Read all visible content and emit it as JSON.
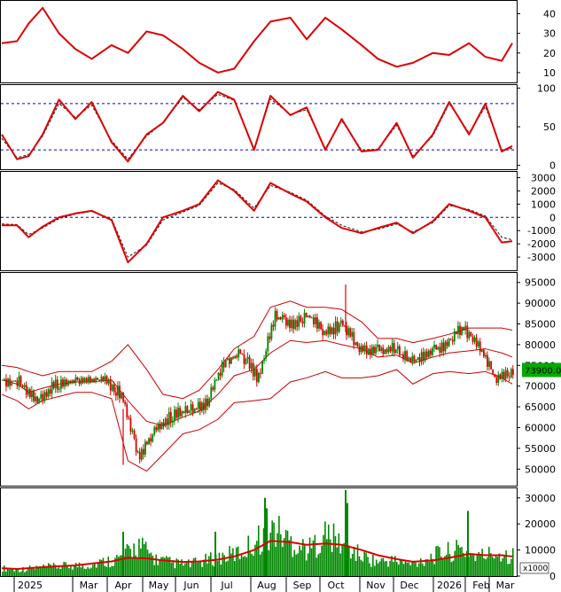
{
  "chart_data": [
    {
      "type": "line",
      "panel": "adx",
      "yticks": [
        "40",
        "30",
        "20",
        "10"
      ],
      "ylim": [
        5,
        47
      ],
      "x": [
        "2024-12-28",
        "2025-01-10",
        "2025-01-20",
        "2025-02-01",
        "2025-02-15",
        "2025-03-01",
        "2025-03-15",
        "2025-04-01",
        "2025-04-15",
        "2025-05-01",
        "2025-05-15",
        "2025-06-01",
        "2025-06-15",
        "2025-07-01",
        "2025-07-15",
        "2025-08-01",
        "2025-08-15",
        "2025-09-01",
        "2025-09-15",
        "2025-10-01",
        "2025-10-15",
        "2025-11-01",
        "2025-11-15",
        "2025-12-01",
        "2025-12-15",
        "2026-01-01",
        "2026-01-15",
        "2026-02-01",
        "2026-02-15",
        "2026-03-01",
        "2026-03-10"
      ],
      "series": [
        {
          "color": "#dd0000",
          "values": [
            25,
            26,
            35,
            43,
            30,
            22,
            17,
            24,
            20,
            31,
            29,
            22,
            15,
            10,
            12,
            26,
            36,
            38,
            27,
            38,
            32,
            24,
            17,
            13,
            15,
            20,
            19,
            25,
            18,
            16,
            25
          ]
        }
      ]
    },
    {
      "type": "line",
      "panel": "stochastic",
      "yticks": [
        "100",
        "50",
        "0"
      ],
      "ylim": [
        -5,
        105
      ],
      "reference_lines": [
        80,
        20
      ],
      "x": [
        "2024-12-28",
        "2025-01-10",
        "2025-01-20",
        "2025-02-01",
        "2025-02-15",
        "2025-03-01",
        "2025-03-15",
        "2025-04-01",
        "2025-04-15",
        "2025-05-01",
        "2025-05-15",
        "2025-06-01",
        "2025-06-15",
        "2025-07-01",
        "2025-07-15",
        "2025-08-01",
        "2025-08-15",
        "2025-09-01",
        "2025-09-15",
        "2025-10-01",
        "2025-10-15",
        "2025-11-01",
        "2025-11-15",
        "2025-12-01",
        "2025-12-15",
        "2026-01-01",
        "2026-01-15",
        "2026-02-01",
        "2026-02-15",
        "2026-03-01",
        "2026-03-10"
      ],
      "series": [
        {
          "color": "#dd0000",
          "values": [
            40,
            8,
            12,
            40,
            85,
            60,
            82,
            30,
            5,
            40,
            55,
            90,
            70,
            95,
            85,
            20,
            90,
            65,
            75,
            20,
            60,
            18,
            20,
            55,
            10,
            40,
            82,
            40,
            80,
            18,
            25
          ]
        },
        {
          "color": "#222222",
          "dash": true,
          "values": [
            35,
            10,
            14,
            38,
            80,
            62,
            78,
            32,
            8,
            38,
            55,
            88,
            72,
            92,
            84,
            22,
            86,
            66,
            72,
            22,
            58,
            20,
            21,
            52,
            12,
            38,
            80,
            42,
            76,
            20,
            22
          ]
        }
      ]
    },
    {
      "type": "line",
      "panel": "macd",
      "yticks": [
        "3000",
        "2000",
        "1000",
        "0",
        "-1000",
        "-2000",
        "-3000"
      ],
      "ylim": [
        -4000,
        3500
      ],
      "reference_lines": [
        0
      ],
      "x": [
        "2024-12-28",
        "2025-01-10",
        "2025-01-20",
        "2025-02-01",
        "2025-02-15",
        "2025-03-01",
        "2025-03-15",
        "2025-04-01",
        "2025-04-15",
        "2025-05-01",
        "2025-05-15",
        "2025-06-01",
        "2025-06-15",
        "2025-07-01",
        "2025-07-15",
        "2025-08-01",
        "2025-08-15",
        "2025-09-01",
        "2025-09-15",
        "2025-10-01",
        "2025-10-15",
        "2025-11-01",
        "2025-11-15",
        "2025-12-01",
        "2025-12-15",
        "2026-01-01",
        "2026-01-15",
        "2026-02-01",
        "2026-02-15",
        "2026-03-01",
        "2026-03-10"
      ],
      "series": [
        {
          "color": "#dd0000",
          "values": [
            -600,
            -600,
            -1500,
            -700,
            0,
            300,
            500,
            -200,
            -3400,
            -2000,
            0,
            500,
            1000,
            2800,
            2000,
            500,
            2600,
            1800,
            1200,
            0,
            -800,
            -1200,
            -800,
            -400,
            -1200,
            -300,
            1000,
            500,
            0,
            -1900,
            -1800
          ]
        },
        {
          "color": "#222222",
          "dash": true,
          "values": [
            -500,
            -550,
            -1300,
            -800,
            -100,
            250,
            450,
            -100,
            -3000,
            -2100,
            -200,
            400,
            900,
            2600,
            2100,
            700,
            2400,
            1900,
            1300,
            100,
            -600,
            -1100,
            -900,
            -500,
            -1100,
            -400,
            900,
            600,
            100,
            -1500,
            -1700
          ]
        }
      ]
    },
    {
      "type": "line",
      "panel": "price",
      "yticks": [
        "95000",
        "90000",
        "85000",
        "80000",
        "75000",
        "70000",
        "65000",
        "60000",
        "55000",
        "50000"
      ],
      "ylim": [
        46000,
        97500
      ],
      "last_price_label": "73900.00",
      "x": [
        "2024-12-28",
        "2025-01-10",
        "2025-01-20",
        "2025-02-01",
        "2025-02-15",
        "2025-03-01",
        "2025-03-15",
        "2025-04-01",
        "2025-04-15",
        "2025-05-01",
        "2025-05-15",
        "2025-06-01",
        "2025-06-15",
        "2025-07-01",
        "2025-07-15",
        "2025-08-01",
        "2025-08-15",
        "2025-09-01",
        "2025-09-15",
        "2025-10-01",
        "2025-10-15",
        "2025-11-01",
        "2025-11-15",
        "2025-12-01",
        "2025-12-15",
        "2026-01-01",
        "2026-01-15",
        "2026-02-01",
        "2026-02-15",
        "2026-03-01",
        "2026-03-10"
      ],
      "series": [
        {
          "name": "",
          "color": "#dd0000",
          "values": [
            71500,
            71000,
            66000,
            70000,
            71000,
            71500,
            71500,
            68000,
            53000,
            60000,
            63000,
            64000,
            66000,
            76000,
            78000,
            72000,
            87000,
            85000,
            87000,
            83000,
            85000,
            79000,
            78500,
            79000,
            76000,
            78000,
            80000,
            84000,
            80000,
            71500,
            73900
          ]
        },
        {
          "color": "#cc0000",
          "values": [
            75000,
            74500,
            73500,
            72500,
            73500,
            73500,
            73500,
            76000,
            80000,
            74000,
            68000,
            67000,
            69000,
            74000,
            79000,
            82000,
            89000,
            90500,
            89000,
            89000,
            88500,
            85500,
            81500,
            81500,
            80500,
            81500,
            82500,
            84000,
            84000,
            84000,
            83500
          ]
        },
        {
          "color": "#cc0000",
          "values": [
            71500,
            70500,
            68500,
            69500,
            70500,
            71000,
            71000,
            71500,
            66500,
            61500,
            60500,
            62500,
            64000,
            68000,
            72500,
            74000,
            78000,
            81000,
            80500,
            81000,
            80000,
            79000,
            77000,
            77500,
            75500,
            77000,
            78000,
            78500,
            79000,
            78000,
            77000
          ]
        },
        {
          "color": "#cc0000",
          "values": [
            68000,
            66500,
            64500,
            66500,
            67500,
            68500,
            68500,
            67000,
            52000,
            49500,
            53500,
            58500,
            59500,
            62000,
            66000,
            66500,
            67000,
            71000,
            72000,
            73500,
            72000,
            72000,
            72500,
            74000,
            70500,
            73000,
            73500,
            73000,
            73500,
            72000,
            70500
          ]
        }
      ]
    },
    {
      "type": "bar",
      "panel": "volume",
      "yticks": [
        "30000",
        "20000",
        "10000",
        "0"
      ],
      "y_multiplier_label": "x1000",
      "ylim": [
        0,
        34000
      ],
      "x_labels": [
        "2025",
        "Mar",
        "Apr",
        "May",
        "Jun",
        "Jul",
        "Aug",
        "Sep",
        "Oct",
        "Nov",
        "Dec",
        "2026",
        "Feb",
        "Mar"
      ],
      "x": [
        "2024-12-28",
        "2025-01-10",
        "2025-01-20",
        "2025-02-01",
        "2025-02-15",
        "2025-03-01",
        "2025-03-15",
        "2025-04-01",
        "2025-04-15",
        "2025-05-01",
        "2025-05-15",
        "2025-06-01",
        "2025-06-15",
        "2025-07-01",
        "2025-07-15",
        "2025-08-01",
        "2025-08-15",
        "2025-09-01",
        "2025-09-15",
        "2025-10-01",
        "2025-10-15",
        "2025-11-01",
        "2025-11-15",
        "2025-12-01",
        "2025-12-15",
        "2026-01-01",
        "2026-01-15",
        "2026-02-01",
        "2026-02-15",
        "2026-03-01",
        "2026-03-10"
      ],
      "series": [
        {
          "color": "#008800",
          "values": [
            3000,
            2500,
            3200,
            3500,
            4000,
            4200,
            5500,
            7000,
            12000,
            6500,
            5000,
            4500,
            6000,
            7500,
            9000,
            14000,
            18000,
            13000,
            10000,
            16000,
            12000,
            8000,
            5500,
            6000,
            4500,
            7000,
            9000,
            10000,
            7500,
            9000,
            8000
          ]
        },
        {
          "color": "#dd0000",
          "values": [
            3000,
            2700,
            3000,
            3400,
            3800,
            4100,
            4800,
            5600,
            7000,
            6800,
            6000,
            5400,
            5600,
            6300,
            7500,
            10000,
            13500,
            13000,
            12000,
            12500,
            12000,
            10000,
            8000,
            6500,
            5500,
            6000,
            7000,
            8500,
            8000,
            8000,
            7500
          ]
        }
      ]
    }
  ]
}
